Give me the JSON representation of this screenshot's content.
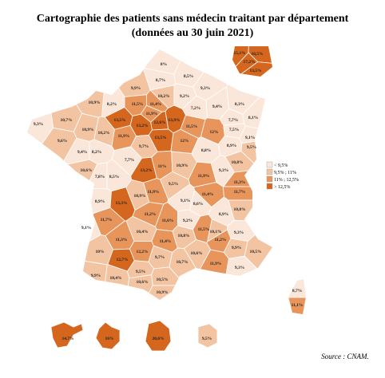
{
  "header": {
    "title": "Cartographie  des patients sans médecin traitant par département",
    "subtitle": "(données au 30 juin 2021)"
  },
  "legend": [
    {
      "label": "< 9,5%",
      "color": "#fbe7da"
    },
    {
      "label": "9,5% ; 11%",
      "color": "#f3c4a2"
    },
    {
      "label": "11% ; 12,5%",
      "color": "#e8955c"
    },
    {
      "label": "> 12,5%",
      "color": "#d4661e"
    }
  ],
  "departments": [
    {
      "label": "8%",
      "class": 0
    },
    {
      "label": "8,5%",
      "class": 0
    },
    {
      "label": "8,7%",
      "class": 0
    },
    {
      "label": "9,3%",
      "class": 0
    },
    {
      "label": "9,9%",
      "class": 1
    },
    {
      "label": "10,2%",
      "class": 1
    },
    {
      "label": "9,2%",
      "class": 0
    },
    {
      "label": "8,3%",
      "class": 0
    },
    {
      "label": "10,9%",
      "class": 1
    },
    {
      "label": "8,2%",
      "class": 0
    },
    {
      "label": "11,5%",
      "class": 2
    },
    {
      "label": "11,4%",
      "class": 2
    },
    {
      "label": "7,2%",
      "class": 0
    },
    {
      "label": "9,4%",
      "class": 0
    },
    {
      "label": "8,1%",
      "class": 0
    },
    {
      "label": "10,7%",
      "class": 1
    },
    {
      "label": "13,5%",
      "class": 3
    },
    {
      "label": "11,9%",
      "class": 2
    },
    {
      "label": "13,2%",
      "class": 3
    },
    {
      "label": "12,6%",
      "class": 3
    },
    {
      "label": "13,9%",
      "class": 3
    },
    {
      "label": "7,7%",
      "class": 0
    },
    {
      "label": "9,3%",
      "class": 0
    },
    {
      "label": "10,9%",
      "class": 1
    },
    {
      "label": "10,2%",
      "class": 1
    },
    {
      "label": "11,5%",
      "class": 2
    },
    {
      "label": "12%",
      "class": 2
    },
    {
      "label": "7,5%",
      "class": 0
    },
    {
      "label": "9,6%",
      "class": 1
    },
    {
      "label": "11,9%",
      "class": 2
    },
    {
      "label": "13,5%",
      "class": 3
    },
    {
      "label": "12%",
      "class": 2
    },
    {
      "label": "8,9%",
      "class": 0
    },
    {
      "label": "9,1%",
      "class": 0
    },
    {
      "label": "9,5%",
      "class": 1
    },
    {
      "label": "9,7%",
      "class": 1
    },
    {
      "label": "9,4%",
      "class": 0
    },
    {
      "label": "8,2%",
      "class": 0
    },
    {
      "label": "8,8%",
      "class": 0
    },
    {
      "label": "7,7%",
      "class": 0
    },
    {
      "label": "11%",
      "class": 2
    },
    {
      "label": "10,9%",
      "class": 1
    },
    {
      "label": "10,8%",
      "class": 1
    },
    {
      "label": "10,6%",
      "class": 1
    },
    {
      "label": "7,8%",
      "class": 0
    },
    {
      "label": "8,5%",
      "class": 0
    },
    {
      "label": "13,2%",
      "class": 3
    },
    {
      "label": "9,3%",
      "class": 0
    },
    {
      "label": "11,9%",
      "class": 2
    },
    {
      "label": "9,5%",
      "class": 1
    },
    {
      "label": "11,3%",
      "class": 2
    },
    {
      "label": "11,4%",
      "class": 2
    },
    {
      "label": "11,7%",
      "class": 2
    },
    {
      "label": "10,9%",
      "class": 1
    },
    {
      "label": "11,9%",
      "class": 2
    },
    {
      "label": "9,1%",
      "class": 0
    },
    {
      "label": "8,6%",
      "class": 0
    },
    {
      "label": "10,8%",
      "class": 1
    },
    {
      "label": "8,9%",
      "class": 0
    },
    {
      "label": "13,3%",
      "class": 3
    },
    {
      "label": "8,9%",
      "class": 0
    },
    {
      "label": "11,7%",
      "class": 2
    },
    {
      "label": "11,2%",
      "class": 2
    },
    {
      "label": "11,6%",
      "class": 2
    },
    {
      "label": "9,2%",
      "class": 0
    },
    {
      "label": "10,1%",
      "class": 1
    },
    {
      "label": "9,1%",
      "class": 0
    },
    {
      "label": "10,4%",
      "class": 1
    },
    {
      "label": "10,8%",
      "class": 1
    },
    {
      "label": "11,5%",
      "class": 2
    },
    {
      "label": "9,3%",
      "class": 0
    },
    {
      "label": "11,3%",
      "class": 2
    },
    {
      "label": "11,4%",
      "class": 2
    },
    {
      "label": "11,2%",
      "class": 2
    },
    {
      "label": "9,9%",
      "class": 1
    },
    {
      "label": "10%",
      "class": 1
    },
    {
      "label": "12,2%",
      "class": 2
    },
    {
      "label": "9,7%",
      "class": 1
    },
    {
      "label": "10,6%",
      "class": 1
    },
    {
      "label": "10,5%",
      "class": 1
    },
    {
      "label": "12,7%",
      "class": 3
    },
    {
      "label": "10,7%",
      "class": 1
    },
    {
      "label": "11,9%",
      "class": 2
    },
    {
      "label": "9,9%",
      "class": 1
    },
    {
      "label": "10,4%",
      "class": 1
    },
    {
      "label": "9,5%",
      "class": 1
    },
    {
      "label": "9,3%",
      "class": 0
    },
    {
      "label": "10,6%",
      "class": 1
    },
    {
      "label": "10,5%",
      "class": 1
    },
    {
      "label": "10,9%",
      "class": 1
    }
  ],
  "corsica": [
    {
      "label": "8,7%",
      "class": 0
    },
    {
      "label": "11,1%",
      "class": 2
    }
  ],
  "ile_de_france": [
    {
      "label": "15,1%",
      "class": 3
    },
    {
      "label": "16,5%",
      "class": 3
    },
    {
      "label": "17,2%",
      "class": 3
    },
    {
      "label": "13,5%",
      "class": 3
    }
  ],
  "overseas": [
    {
      "label": "14,7%",
      "class": 3
    },
    {
      "label": "16%",
      "class": 3
    },
    {
      "label": "20,6%",
      "class": 3
    },
    {
      "label": "9,5%",
      "class": 1
    }
  ],
  "source": "Source : CNAM."
}
